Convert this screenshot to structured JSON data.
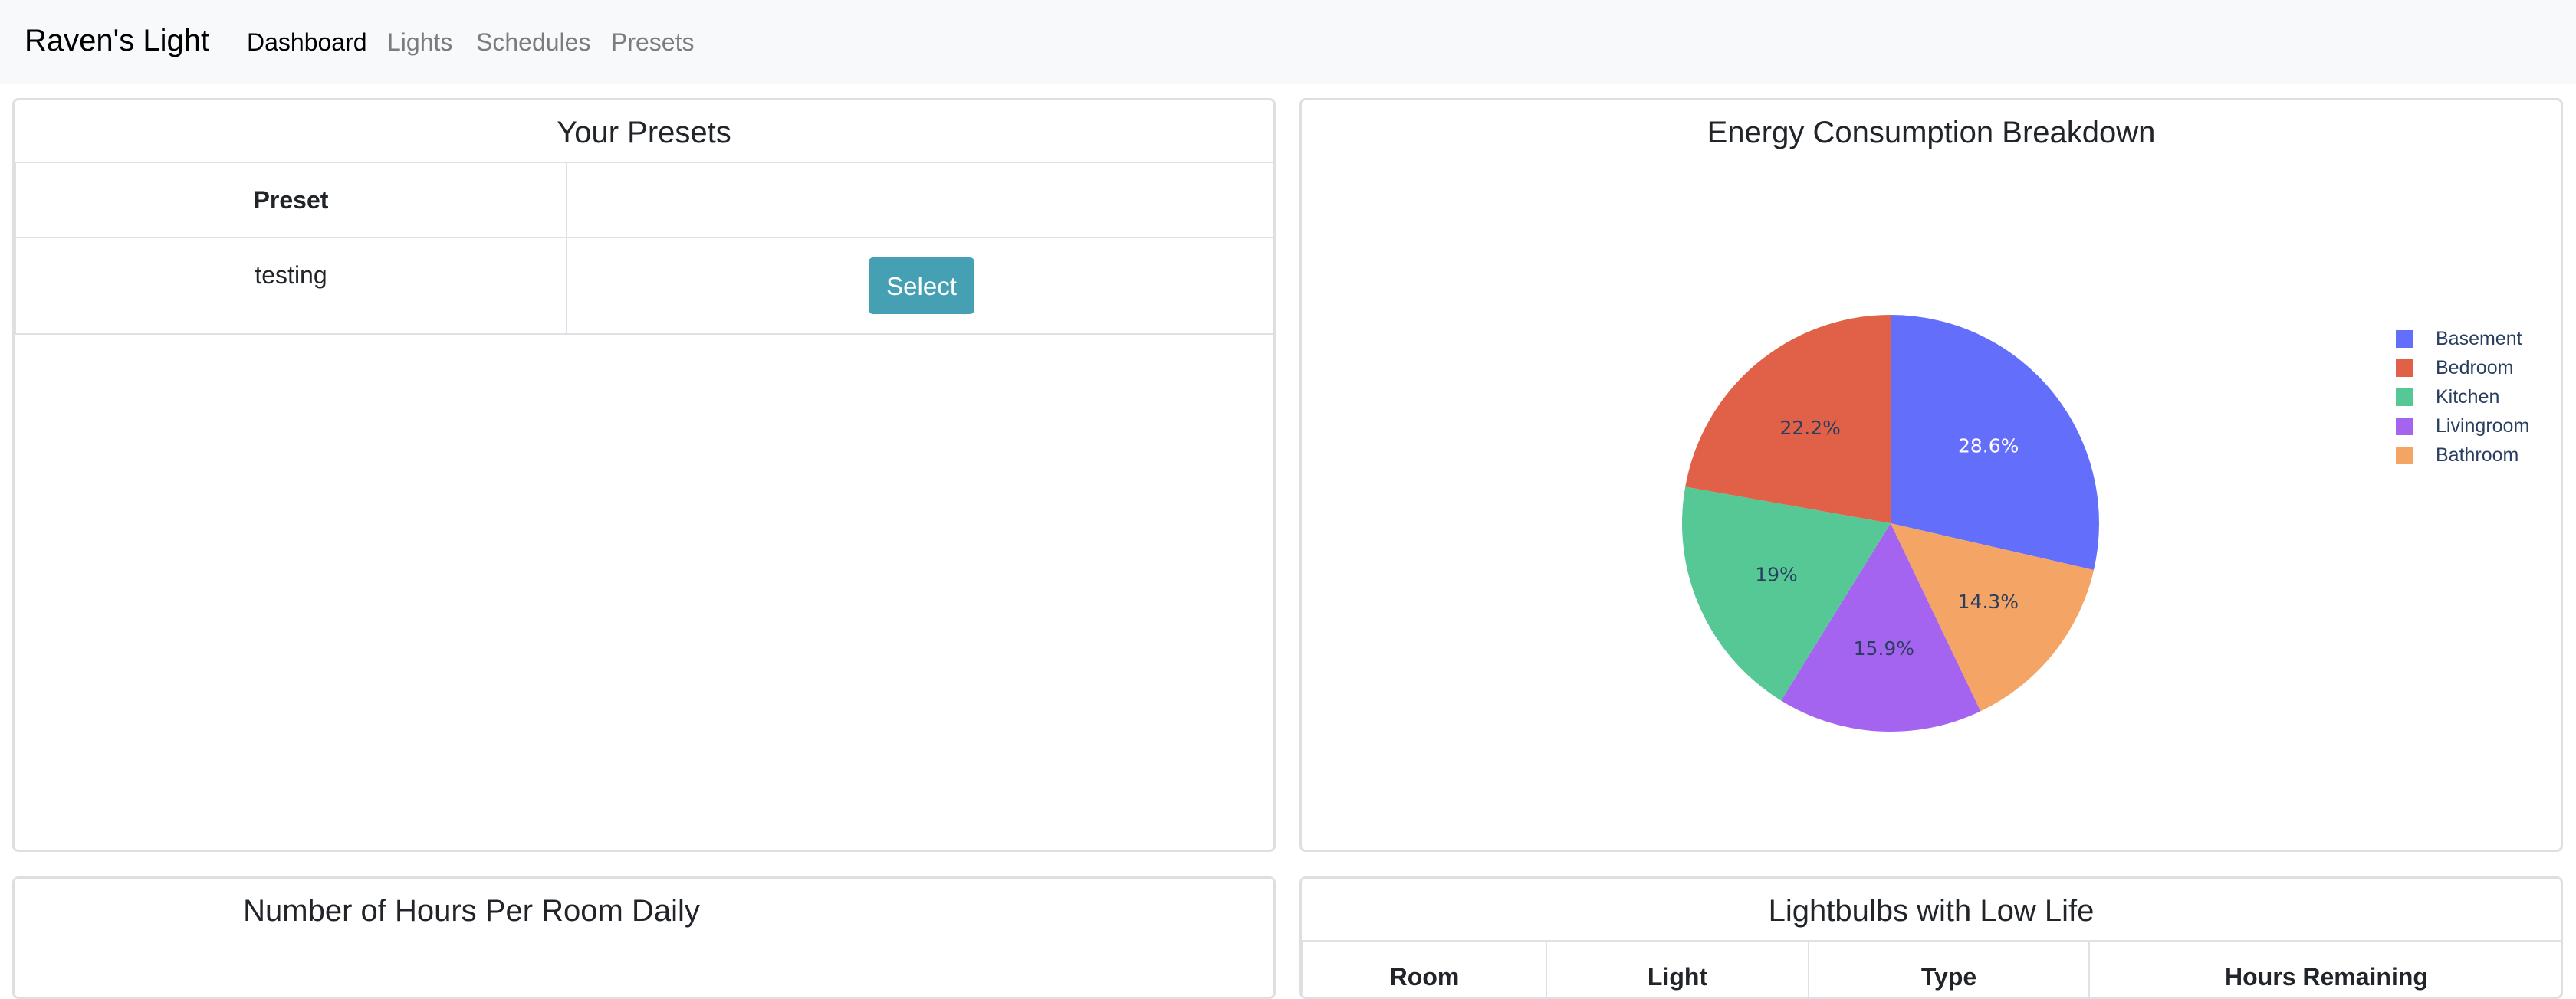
{
  "navbar": {
    "brand": "Raven's Light",
    "links": [
      {
        "label": "Dashboard",
        "active": true
      },
      {
        "label": "Lights",
        "active": false
      },
      {
        "label": "Schedules",
        "active": false
      },
      {
        "label": "Presets",
        "active": false
      }
    ]
  },
  "presets_card": {
    "title": "Your Presets",
    "columns": [
      "Preset",
      ""
    ],
    "rows": [
      {
        "preset": "testing",
        "action_label": "Select"
      }
    ],
    "button_color": "#46a0b4"
  },
  "energy_card": {
    "title": "Energy Consumption Breakdown"
  },
  "hours_card": {
    "title": "Number of Hours Per Room Daily"
  },
  "lowlife_card": {
    "title": "Lightbulbs with Low Life",
    "columns": [
      "Room",
      "Light",
      "Type",
      "Hours Remaining"
    ]
  },
  "chart_data": {
    "type": "pie",
    "title": "Energy Consumption Breakdown",
    "slices": [
      {
        "label": "Basement",
        "value": 28.6,
        "text": "28.6%",
        "color": "#636efa",
        "text_color": "#ffffff"
      },
      {
        "label": "Bathroom",
        "value": 14.3,
        "text": "14.3%",
        "color": "#f4a464",
        "text_color": "#2a3f5f"
      },
      {
        "label": "Livingroom",
        "value": 15.9,
        "text": "15.9%",
        "color": "#a564f0",
        "text_color": "#2a3f5f"
      },
      {
        "label": "Kitchen",
        "value": 19.0,
        "text": "19%",
        "color": "#56c896",
        "text_color": "#2a3f5f"
      },
      {
        "label": "Bedroom",
        "value": 22.2,
        "text": "22.2%",
        "color": "#e06048",
        "text_color": "#2a3f5f"
      }
    ],
    "legend": [
      "Basement",
      "Bedroom",
      "Kitchen",
      "Livingroom",
      "Bathroom"
    ],
    "legend_position": "right",
    "start_angle": "12 o'clock",
    "direction": "clockwise"
  }
}
